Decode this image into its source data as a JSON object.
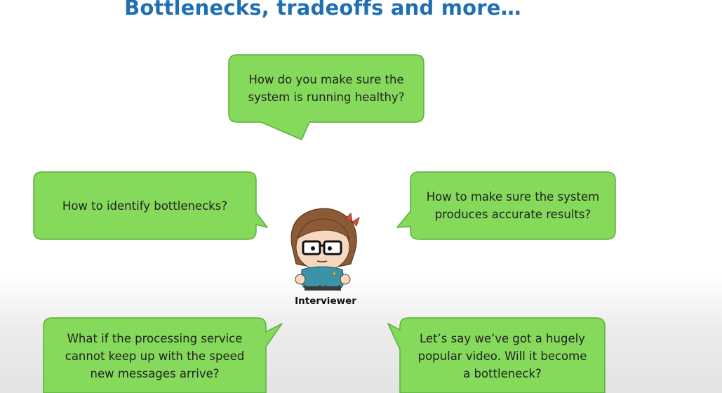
{
  "title": "Bottlenecks, tradeoffs and more…",
  "bubbles": {
    "top": "How do you make sure the\nsystem is running healthy?",
    "left": "How to identify bottlenecks?",
    "right": "How to make sure the system\nproduces accurate results?",
    "bottom_left": "What if the processing service\ncannot keep up with the speed\nnew messages arrive?",
    "bottom_right": "Let’s say we’ve got a hugely\npopular video. Will it become\na bottleneck?"
  },
  "character": {
    "caption": "Interviewer"
  },
  "colors": {
    "bubble_fill": "#85d95b",
    "bubble_stroke": "#5cae3c",
    "title": "#1f6fb2"
  }
}
